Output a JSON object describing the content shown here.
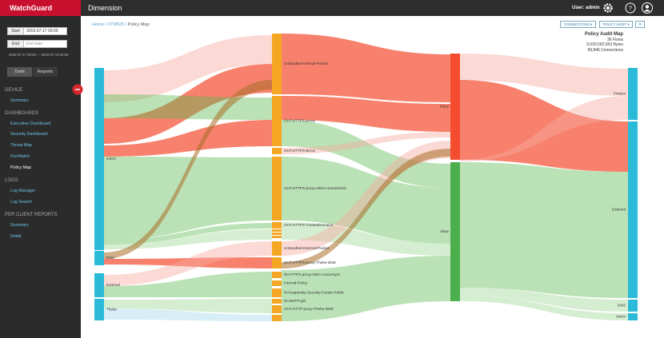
{
  "header": {
    "logo": "WatchGuard",
    "title": "Dimension",
    "user": "User: admin"
  },
  "sidebar": {
    "start_label": "Start",
    "start_value": "2015-07-17 00:00",
    "end_label": "End",
    "end_placeholder": "End date",
    "range": "2015-07-17 00:00 — 2015-07-18 00:00",
    "tabs": [
      "Tools",
      "Reports"
    ],
    "sections": [
      {
        "title": "DEVICE",
        "items": [
          "Summary"
        ]
      },
      {
        "title": "DASHBOARDS",
        "items": [
          "Executive Dashboard",
          "Security Dashboard",
          "Threat Map",
          "FireWatch",
          "Policy Map"
        ]
      },
      {
        "title": "LOGS",
        "items": [
          "Log Manager",
          "Log Search"
        ]
      },
      {
        "title": "PER CLIENT REPORTS",
        "items": [
          "Summary",
          "Detail"
        ]
      }
    ]
  },
  "breadcrumb": [
    "Home",
    "XTM525",
    "Policy Map"
  ],
  "buttons": [
    "CONNECTIONS",
    "POLICY AUDIT"
  ],
  "summary": {
    "title": "Policy Audit Map",
    "flows": "36 Flows",
    "bytes": "9,020,592,563 Bytes",
    "connections": "99,846 Connections"
  },
  "sankey": {
    "sources": [
      "Intern",
      "DMZ",
      "External",
      "Thebe"
    ],
    "policies": [
      "Unhandled-Internal-Packet",
      "OUT-HTTPS-proxy",
      "OUT-HTTPS-BCon",
      "OUT-HTTPS-proxy-Intern-unrestricted",
      "OUT-HTTPS-TrustedDomains",
      "Unhandled-External-Packet",
      "OUT-HTTPS-proxy-Thebe-DMZ",
      "IN-HTTPS-proxy-OWA-ActiveSync",
      "Internal-Policy",
      "IN-Kaspersky-Security-Center-Public",
      "IN-SMTP-gdt",
      "OUT-HTTP-proxy-Thebe-DMZ"
    ],
    "actions": [
      "Deny",
      "Allow"
    ],
    "destinations": [
      "Firebox",
      "External",
      "DMZ",
      "Intern"
    ]
  }
}
